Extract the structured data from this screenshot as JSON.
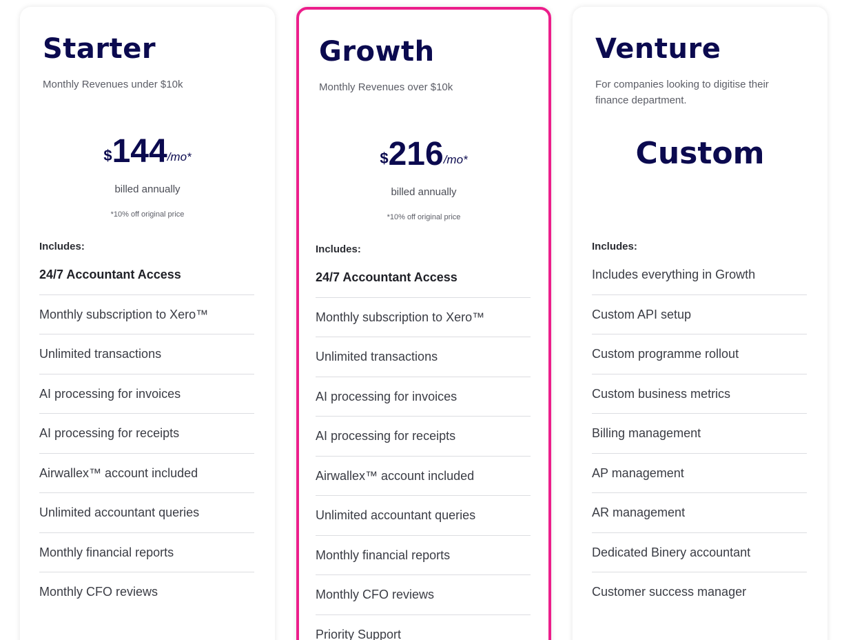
{
  "plans": [
    {
      "title": "Starter",
      "subtitle": "Monthly Revenues under $10k",
      "currency": "$",
      "amount": "144",
      "unit": "/mo*",
      "billing": "billed annually",
      "discount": "*10% off original price",
      "includes_label": "Includes:",
      "features": [
        "24/7 Accountant Access",
        "Monthly subscription to Xero™",
        "Unlimited transactions",
        "AI processing for invoices",
        "AI processing for receipts",
        "Airwallex™ account included",
        "Unlimited accountant queries",
        "Monthly financial reports",
        "Monthly CFO reviews"
      ]
    },
    {
      "title": "Growth",
      "subtitle": "Monthly Revenues over $10k",
      "currency": "$",
      "amount": "216",
      "unit": "/mo*",
      "billing": "billed annually",
      "discount": "*10% off original price",
      "includes_label": "Includes:",
      "highlight_color": "#ec1e8b",
      "features": [
        "24/7 Accountant Access",
        "Monthly subscription to Xero™",
        "Unlimited transactions",
        "AI processing for invoices",
        "AI processing for receipts",
        "Airwallex™ account included",
        "Unlimited accountant queries",
        "Monthly financial reports",
        "Monthly CFO reviews",
        "Priority Support"
      ]
    },
    {
      "title": "Venture",
      "subtitle": "For companies looking to digitise their finance department.",
      "price_text": "Custom",
      "includes_label": "Includes:",
      "features": [
        "Includes everything in Growth",
        "Custom API setup",
        "Custom programme rollout",
        "Custom business metrics",
        "Billing management",
        "AP management",
        "AR management",
        "Dedicated Binery accountant",
        "Customer success manager"
      ]
    }
  ],
  "colors": {
    "title": "#0b0a4f",
    "accent": "#ec1e8b"
  }
}
